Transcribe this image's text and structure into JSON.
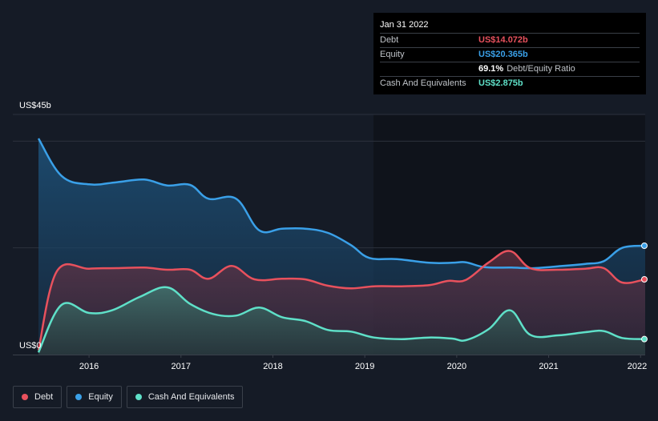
{
  "tooltip": {
    "date": "Jan 31 2022",
    "rows": [
      {
        "label": "Debt",
        "value": "US$14.072b",
        "color": "#e8515d"
      },
      {
        "label": "Equity",
        "value": "US$20.365b",
        "color": "#3aa0e8"
      },
      {
        "label": "",
        "value": "69.1%",
        "value_suffix": "Debt/Equity Ratio",
        "color": "#ffffff"
      },
      {
        "label": "Cash And Equivalents",
        "value": "US$2.875b",
        "color": "#5fe0c8"
      }
    ]
  },
  "legend": [
    {
      "label": "Debt",
      "color": "#e8515d"
    },
    {
      "label": "Equity",
      "color": "#3aa0e8"
    },
    {
      "label": "Cash And Equivalents",
      "color": "#5fe0c8"
    }
  ],
  "chart_data": {
    "type": "area",
    "y_top_label": "US$45b",
    "y_bottom_label": "US$0",
    "ylim": [
      0,
      45
    ],
    "xlim": [
      2015.45,
      2022.05
    ],
    "x_ticks": [
      {
        "value": 2016,
        "label": "2016"
      },
      {
        "value": 2017,
        "label": "2017"
      },
      {
        "value": 2018,
        "label": "2018"
      },
      {
        "value": 2019,
        "label": "2019"
      },
      {
        "value": 2020,
        "label": "2020"
      },
      {
        "value": 2021,
        "label": "2021"
      },
      {
        "value": 2022,
        "label": "2022"
      }
    ],
    "grid": true,
    "series": [
      {
        "name": "Equity",
        "color": "#3aa0e8",
        "points": [
          [
            2015.45,
            40.5
          ],
          [
            2015.7,
            33.5
          ],
          [
            2016.0,
            31.9
          ],
          [
            2016.3,
            32.3
          ],
          [
            2016.6,
            32.8
          ],
          [
            2016.85,
            31.7
          ],
          [
            2017.1,
            31.8
          ],
          [
            2017.3,
            29.2
          ],
          [
            2017.6,
            29.2
          ],
          [
            2017.85,
            23.3
          ],
          [
            2018.1,
            23.6
          ],
          [
            2018.35,
            23.6
          ],
          [
            2018.6,
            22.8
          ],
          [
            2018.85,
            20.5
          ],
          [
            2019.05,
            18.1
          ],
          [
            2019.35,
            17.9
          ],
          [
            2019.7,
            17.2
          ],
          [
            2019.95,
            17.2
          ],
          [
            2020.1,
            17.3
          ],
          [
            2020.3,
            16.4
          ],
          [
            2020.6,
            16.3
          ],
          [
            2020.85,
            16.2
          ],
          [
            2021.15,
            16.6
          ],
          [
            2021.4,
            17.0
          ],
          [
            2021.6,
            17.5
          ],
          [
            2021.8,
            20.0
          ],
          [
            2022.05,
            20.4
          ]
        ]
      },
      {
        "name": "Debt",
        "color": "#e8515d",
        "points": [
          [
            2015.45,
            0.8
          ],
          [
            2015.65,
            15.6
          ],
          [
            2016.0,
            16.1
          ],
          [
            2016.3,
            16.2
          ],
          [
            2016.6,
            16.3
          ],
          [
            2016.85,
            15.9
          ],
          [
            2017.1,
            15.9
          ],
          [
            2017.3,
            14.2
          ],
          [
            2017.55,
            16.6
          ],
          [
            2017.8,
            14.1
          ],
          [
            2018.1,
            14.2
          ],
          [
            2018.35,
            14.1
          ],
          [
            2018.6,
            12.9
          ],
          [
            2018.85,
            12.4
          ],
          [
            2019.1,
            12.8
          ],
          [
            2019.4,
            12.8
          ],
          [
            2019.7,
            13.0
          ],
          [
            2019.9,
            13.8
          ],
          [
            2020.1,
            14.0
          ],
          [
            2020.35,
            17.3
          ],
          [
            2020.58,
            19.4
          ],
          [
            2020.8,
            16.2
          ],
          [
            2021.1,
            15.9
          ],
          [
            2021.4,
            16.1
          ],
          [
            2021.6,
            16.2
          ],
          [
            2021.8,
            13.5
          ],
          [
            2022.05,
            14.1
          ]
        ]
      },
      {
        "name": "Cash And Equivalents",
        "color": "#5fe0c8",
        "points": [
          [
            2015.45,
            0.4
          ],
          [
            2015.7,
            9.3
          ],
          [
            2016.0,
            7.8
          ],
          [
            2016.25,
            8.3
          ],
          [
            2016.55,
            10.8
          ],
          [
            2016.85,
            12.6
          ],
          [
            2017.1,
            9.5
          ],
          [
            2017.35,
            7.6
          ],
          [
            2017.6,
            7.3
          ],
          [
            2017.85,
            8.8
          ],
          [
            2018.1,
            7.0
          ],
          [
            2018.35,
            6.3
          ],
          [
            2018.6,
            4.6
          ],
          [
            2018.85,
            4.3
          ],
          [
            2019.1,
            3.2
          ],
          [
            2019.4,
            2.9
          ],
          [
            2019.7,
            3.2
          ],
          [
            2019.95,
            3.0
          ],
          [
            2020.1,
            2.7
          ],
          [
            2020.35,
            4.8
          ],
          [
            2020.58,
            8.3
          ],
          [
            2020.8,
            3.7
          ],
          [
            2021.1,
            3.6
          ],
          [
            2021.4,
            4.2
          ],
          [
            2021.6,
            4.4
          ],
          [
            2021.8,
            3.1
          ],
          [
            2022.05,
            2.9
          ]
        ]
      }
    ]
  }
}
